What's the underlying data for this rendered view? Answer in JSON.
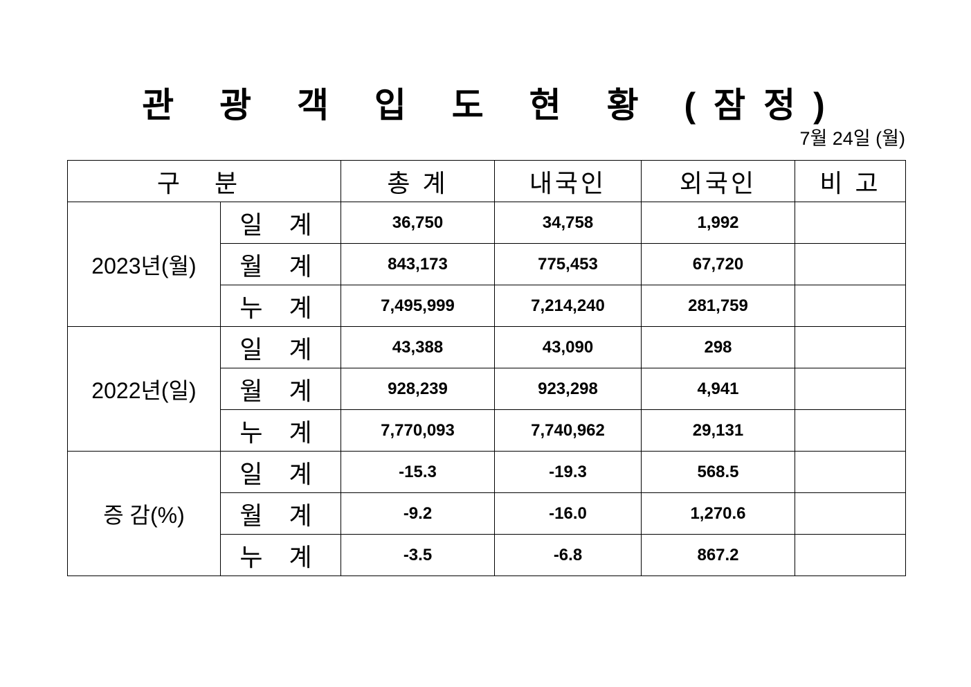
{
  "title": "관 광 객 입 도 현 황 (잠정)",
  "date": "7월  24일  (월)",
  "columns": [
    "구  분",
    "총   계",
    "내국인",
    "외국인",
    "비   고"
  ],
  "groups": [
    {
      "label": "2023년(월)",
      "rows": [
        {
          "label": "일 계",
          "total": "36,750",
          "domestic": "34,758",
          "foreign": "1,992",
          "note": ""
        },
        {
          "label": "월 계",
          "total": "843,173",
          "domestic": "775,453",
          "foreign": "67,720",
          "note": ""
        },
        {
          "label": "누 계",
          "total": "7,495,999",
          "domestic": "7,214,240",
          "foreign": "281,759",
          "note": ""
        }
      ]
    },
    {
      "label": "2022년(일)",
      "rows": [
        {
          "label": "일 계",
          "total": "43,388",
          "domestic": "43,090",
          "foreign": "298",
          "note": ""
        },
        {
          "label": "월 계",
          "total": "928,239",
          "domestic": "923,298",
          "foreign": "4,941",
          "note": ""
        },
        {
          "label": "누 계",
          "total": "7,770,093",
          "domestic": "7,740,962",
          "foreign": "29,131",
          "note": ""
        }
      ]
    },
    {
      "label": "증 감(%)",
      "rows": [
        {
          "label": "일 계",
          "total": "-15.3",
          "domestic": "-19.3",
          "foreign": "568.5",
          "note": ""
        },
        {
          "label": "월 계",
          "total": "-9.2",
          "domestic": "-16.0",
          "foreign": "1,270.6",
          "note": ""
        },
        {
          "label": "누 계",
          "total": "-3.5",
          "domestic": "-6.8",
          "foreign": "867.2",
          "note": ""
        }
      ]
    }
  ]
}
